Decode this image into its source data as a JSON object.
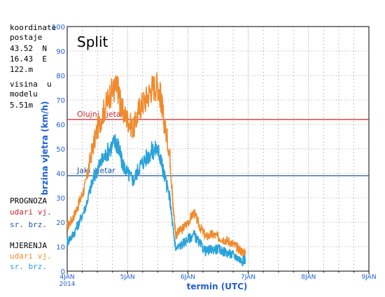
{
  "chart_data": {
    "type": "line",
    "title": "Split",
    "ylabel": "brzina vjetra (km/h)",
    "xlabel": "termin (UTC)",
    "ylim": [
      0,
      100
    ],
    "yticks": [
      0,
      10,
      20,
      30,
      40,
      50,
      60,
      70,
      80,
      90,
      100
    ],
    "xlim_days": [
      4,
      9
    ],
    "xticks": [
      {
        "day": 4,
        "label": "4JAN",
        "sublabel": "2014"
      },
      {
        "day": 5,
        "label": "5JAN"
      },
      {
        "day": 6,
        "label": "6JAN"
      },
      {
        "day": 7,
        "label": "7JAN"
      },
      {
        "day": 8,
        "label": "8JAN"
      },
      {
        "day": 9,
        "label": "9JAN"
      }
    ],
    "grid": true,
    "reference_lines": [
      {
        "value": 62,
        "label": "Olujni vjetar",
        "color": "#cc2222"
      },
      {
        "value": 39,
        "label": "Jaki vjetar",
        "color": "#2255aa"
      }
    ],
    "series": [
      {
        "name": "udari vj.",
        "group": "MJERENJA",
        "color": "#f08a2c",
        "x": [
          4.0,
          4.1,
          4.2,
          4.3,
          4.4,
          4.5,
          4.6,
          4.7,
          4.8,
          4.85,
          4.9,
          5.0,
          5.1,
          5.2,
          5.3,
          5.4,
          5.5,
          5.55,
          5.6,
          5.7,
          5.75,
          5.8,
          5.9,
          6.0,
          6.1,
          6.2,
          6.3,
          6.4,
          6.5,
          6.6,
          6.7,
          6.8,
          6.9,
          6.95
        ],
        "values": [
          18,
          22,
          28,
          35,
          48,
          58,
          65,
          72,
          75,
          74,
          66,
          62,
          58,
          67,
          70,
          75,
          76,
          71,
          62,
          48,
          28,
          15,
          17,
          20,
          24,
          18,
          14,
          15,
          14,
          13,
          12,
          10,
          8,
          7
        ]
      },
      {
        "name": "sr. brz.",
        "group": "MJERENJA",
        "color": "#29a3d9",
        "x": [
          4.0,
          4.1,
          4.2,
          4.3,
          4.4,
          4.5,
          4.6,
          4.7,
          4.8,
          4.85,
          4.9,
          5.0,
          5.1,
          5.2,
          5.3,
          5.4,
          5.5,
          5.55,
          5.6,
          5.7,
          5.75,
          5.8,
          5.9,
          6.0,
          6.1,
          6.2,
          6.3,
          6.4,
          6.5,
          6.6,
          6.7,
          6.8,
          6.9,
          6.95
        ],
        "values": [
          12,
          15,
          20,
          26,
          35,
          42,
          46,
          50,
          53,
          51,
          45,
          40,
          37,
          43,
          46,
          49,
          50,
          46,
          40,
          30,
          18,
          9,
          11,
          13,
          15,
          11,
          8,
          9,
          9,
          8,
          7,
          6,
          4,
          5
        ]
      }
    ]
  },
  "station": {
    "coords_title": "koordinate",
    "coords_sub": "postaje",
    "lat": "43.52  N",
    "lon": "16.43  E",
    "elev": "122.m",
    "model_h_title": "visina  u",
    "model_h_sub": "modelu",
    "model_h": "5.51m"
  },
  "legend": {
    "prognoza_title": "PROGNOZA",
    "prognoza_gust": "udari vj.",
    "prognoza_mean": "sr. brz.",
    "mjerenja_title": "MJERENJA",
    "mjerenja_gust": "udari vj.",
    "mjerenja_mean": "sr. brz.",
    "gust_color_prognoza": "#cc2222",
    "mean_color_prognoza": "#2255aa",
    "gust_color_mjerenja": "#f08a2c",
    "mean_color_mjerenja": "#29a3d9"
  }
}
